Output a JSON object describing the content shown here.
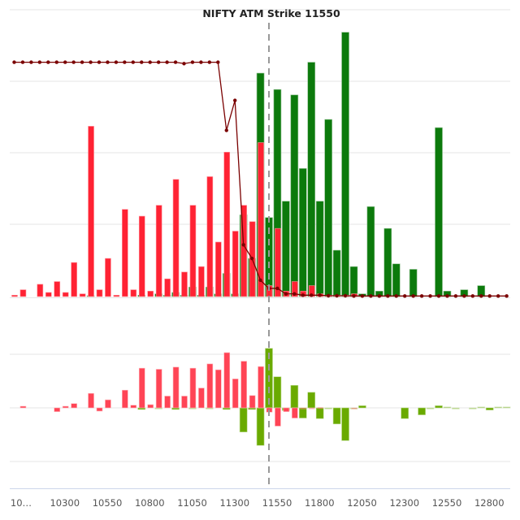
{
  "chart_data": {
    "type": "bar",
    "title": "NIFTY ATM Strike 11550",
    "atm_strike": 11550,
    "strike_step": 50,
    "x_tick_labels": [
      "10…",
      "10300",
      "10550",
      "10800",
      "11050",
      "11300",
      "11550",
      "11800",
      "12050",
      "12300",
      "12550",
      "12800"
    ],
    "x_tick_values": [
      10050,
      10300,
      10550,
      10800,
      11050,
      11300,
      11550,
      11800,
      12050,
      12300,
      12550,
      12800
    ],
    "colors": {
      "put_oi": "#ff2233",
      "call_oi": "#0c7a0c",
      "pcr_line": "#7a0000",
      "put_change": "#ff4455",
      "call_change": "#6aaa00",
      "atm_line": "#999999",
      "grid": "#e6e6e6",
      "axis": "#ccd6eb"
    },
    "panels": [
      {
        "name": "open-interest",
        "series": [
          {
            "name": "Put OI",
            "type": "bar",
            "x": [
              10050,
              10100,
              10150,
              10200,
              10250,
              10300,
              10350,
              10400,
              10450,
              10500,
              10550,
              10600,
              10650,
              10700,
              10750,
              10800,
              10850,
              10900,
              10950,
              11000,
              11050,
              11100,
              11150,
              11200,
              11250,
              11300,
              11350,
              11400,
              11450,
              11500,
              11550,
              11600,
              11650,
              11700,
              11750,
              11800,
              11850,
              11900,
              11950,
              12000,
              12050,
              12100,
              12150,
              12200,
              12250,
              12300,
              12350,
              12400,
              12450,
              12500,
              12550,
              12600,
              12650,
              12700,
              12750,
              12800,
              12850,
              12900,
              12950
            ],
            "values": [
              0.5,
              2.5,
              0,
              4.5,
              1.5,
              5.5,
              1.5,
              12.5,
              1,
              62.5,
              2.5,
              14,
              0.5,
              32,
              2.5,
              29.5,
              2,
              33.5,
              6.5,
              43,
              9,
              33.5,
              11,
              44,
              20,
              53,
              24,
              33.5,
              27.5,
              56.5,
              4,
              25,
              2,
              5.5,
              2,
              4,
              1,
              0.5,
              0.5,
              0.5,
              1,
              0.2,
              0.2,
              0.2,
              0.1,
              0,
              0,
              0,
              0,
              0,
              0,
              0,
              0,
              0,
              0,
              0,
              0,
              0,
              0
            ]
          },
          {
            "name": "Call OI",
            "type": "bar",
            "x": [
              10050,
              10100,
              10150,
              10200,
              10250,
              10300,
              10350,
              10400,
              10450,
              10500,
              10550,
              10600,
              10650,
              10700,
              10750,
              10800,
              10850,
              10900,
              10950,
              11000,
              11050,
              11100,
              11150,
              11200,
              11250,
              11300,
              11350,
              11400,
              11450,
              11500,
              11550,
              11600,
              11650,
              11700,
              11750,
              11800,
              11850,
              11900,
              11950,
              12000,
              12050,
              12100,
              12150,
              12200,
              12250,
              12300,
              12350,
              12400,
              12450,
              12500,
              12550,
              12600,
              12650,
              12700,
              12750,
              12800,
              12850,
              12900,
              12950
            ],
            "values": [
              0,
              0,
              0,
              0,
              0,
              0,
              0,
              0,
              0,
              0.3,
              0,
              0,
              0,
              0,
              0,
              0.5,
              0,
              1,
              0.5,
              1.5,
              0.5,
              3.5,
              0.5,
              3.5,
              1,
              8.5,
              1,
              30,
              14,
              82,
              29,
              76,
              35,
              74,
              47,
              86,
              35,
              65,
              17,
              97,
              11,
              1,
              33,
              2,
              25,
              12,
              0,
              10,
              0,
              0,
              62,
              2,
              0,
              2.5,
              0,
              4,
              0,
              0,
              0
            ]
          },
          {
            "name": "PCR",
            "type": "line",
            "x": [
              10050,
              10100,
              10150,
              10200,
              10250,
              10300,
              10350,
              10400,
              10450,
              10500,
              10550,
              10600,
              10650,
              10700,
              10750,
              10800,
              10850,
              10900,
              10950,
              11000,
              11050,
              11100,
              11150,
              11200,
              11250,
              11300,
              11350,
              11400,
              11450,
              11500,
              11550,
              11600,
              11650,
              11700,
              11750,
              11800,
              11850,
              11900,
              11950,
              12000,
              12050,
              12100,
              12150,
              12200,
              12250,
              12300,
              12350,
              12400,
              12450,
              12500,
              12550,
              12600,
              12650,
              12700,
              12750,
              12800,
              12850,
              12900,
              12950
            ],
            "values": [
              86,
              86,
              86,
              86,
              86,
              86,
              86,
              86,
              86,
              86,
              86,
              86,
              86,
              86,
              86,
              86,
              86,
              86,
              86,
              86,
              85.5,
              86,
              86,
              86,
              86,
              61,
              72,
              19,
              14,
              6,
              3,
              3,
              1,
              1,
              0.5,
              0.5,
              0.5,
              0.3,
              0.3,
              0.3,
              0.2,
              0.2,
              0.2,
              0.2,
              0.2,
              0.2,
              0.2,
              0.2,
              0.2,
              0.2,
              0.2,
              0.2,
              0.2,
              0.2,
              0.2,
              0.2,
              0.2,
              0.2,
              0.2
            ]
          }
        ],
        "ylim": [
          0,
          100
        ],
        "grid": true
      },
      {
        "name": "change-in-oi",
        "series": [
          {
            "name": "Put OI Change",
            "type": "bar",
            "x": [
              10050,
              10100,
              10150,
              10200,
              10250,
              10300,
              10350,
              10400,
              10450,
              10500,
              10550,
              10600,
              10650,
              10700,
              10750,
              10800,
              10850,
              10900,
              10950,
              11000,
              11050,
              11100,
              11150,
              11200,
              11250,
              11300,
              11350,
              11400,
              11450,
              11500,
              11550,
              11600,
              11650,
              11700,
              11750,
              11800,
              11850,
              11900,
              11950,
              12000,
              12050,
              12100,
              12150,
              12200,
              12250,
              12300,
              12350,
              12400,
              12450,
              12500,
              12550,
              12600,
              12650,
              12700,
              12750,
              12800,
              12850,
              12900,
              12950
            ],
            "values": [
              0,
              0.3,
              0,
              0,
              0,
              -0.7,
              0.3,
              0.8,
              0,
              2.7,
              -0.6,
              1.5,
              0,
              3.3,
              0.5,
              7.4,
              0.6,
              7.2,
              2.2,
              7.6,
              2.2,
              7.4,
              3.7,
              8.2,
              7.1,
              10.3,
              5.4,
              8.7,
              2.3,
              7.7,
              -0.8,
              -3.4,
              -0.7,
              -1.9,
              -0.2,
              -0.1,
              0.1,
              0,
              0,
              0,
              -0.2,
              0,
              0,
              0,
              0,
              0,
              0,
              0,
              0,
              0,
              0,
              0,
              0,
              0,
              0,
              0,
              0,
              0,
              0
            ]
          },
          {
            "name": "Call OI Change",
            "type": "bar",
            "x": [
              10050,
              10100,
              10150,
              10200,
              10250,
              10300,
              10350,
              10400,
              10450,
              10500,
              10550,
              10600,
              10650,
              10700,
              10750,
              10800,
              10850,
              10900,
              10950,
              11000,
              11050,
              11100,
              11150,
              11200,
              11250,
              11300,
              11350,
              11400,
              11450,
              11500,
              11550,
              11600,
              11650,
              11700,
              11750,
              11800,
              11850,
              11900,
              11950,
              12000,
              12050,
              12100,
              12150,
              12200,
              12250,
              12300,
              12350,
              12400,
              12450,
              12500,
              12550,
              12600,
              12650,
              12700,
              12750,
              12800,
              12850,
              12900,
              12950
            ],
            "values": [
              0,
              0,
              0,
              0,
              0,
              0,
              0,
              0,
              0,
              0,
              0,
              0,
              0,
              0,
              0,
              -0.3,
              0,
              -0.1,
              0,
              -0.3,
              0,
              -0.1,
              0,
              -0.1,
              0,
              -0.3,
              0,
              -4.5,
              -0.3,
              -7,
              11.1,
              5.8,
              -0.5,
              4.2,
              -1.9,
              2.9,
              -2.0,
              -0.2,
              -3,
              -6.1,
              -0.2,
              0.4,
              0,
              0,
              0,
              0,
              -2,
              0,
              -1.3,
              -0.2,
              0.4,
              0.2,
              -0.2,
              0,
              -0.2,
              0.2,
              -0.4,
              0.2,
              0.2
            ]
          }
        ],
        "ylim": [
          -10,
          10
        ],
        "grid": true
      }
    ],
    "xlabel": "",
    "ylabel": "",
    "legend": "none"
  }
}
